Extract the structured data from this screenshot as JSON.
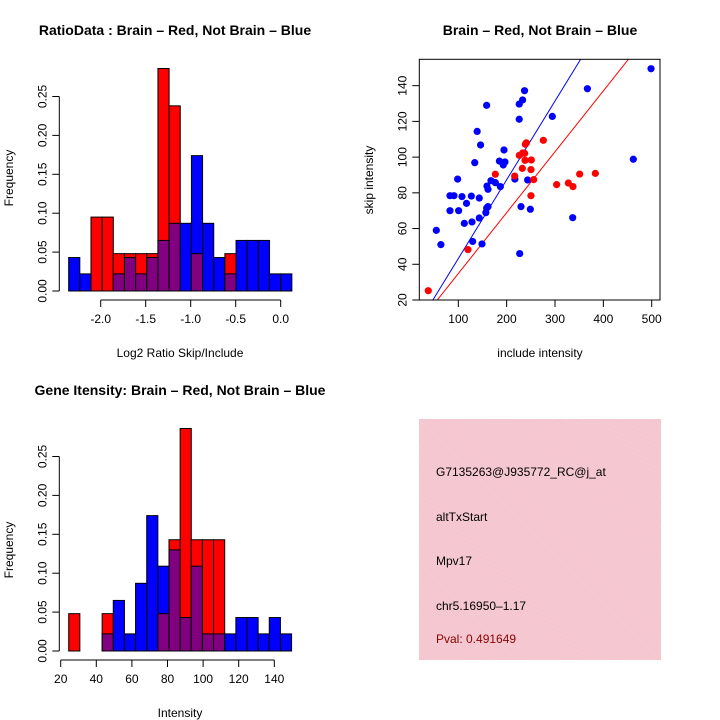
{
  "colors": {
    "red": "#ff0000",
    "blue": "#0000ff",
    "overlap": "#800080",
    "panel": "#f4c2cc",
    "pval": "#8b0000"
  },
  "chart_data": [
    {
      "type": "histogram",
      "title": "RatioData : Brain – Red, Not Brain – Blue",
      "xlabel": "Log2 Ratio Skip/Include",
      "ylabel": "Frequency",
      "xticks": [
        "-2.0",
        "-1.5",
        "-1.0",
        "-0.5",
        "0.0"
      ],
      "xtick_values": [
        -2.0,
        -1.5,
        -1.0,
        -0.5,
        0.0
      ],
      "yticks": [
        "0.00",
        "0.05",
        "0.10",
        "0.15",
        "0.20",
        "0.25"
      ],
      "ytick_values": [
        0,
        0.05,
        0.1,
        0.15,
        0.2,
        0.25
      ],
      "bin_start": -2.356,
      "bin_width": 0.124,
      "series": [
        {
          "name": "Brain",
          "color": "red",
          "values": [
            0,
            0,
            0.095,
            0.095,
            0.048,
            0.048,
            0.048,
            0.048,
            0.286,
            0.238,
            0,
            0.048,
            0,
            0,
            0.048,
            0,
            0,
            0,
            0,
            0
          ]
        },
        {
          "name": "Not Brain",
          "color": "blue",
          "values": [
            0.043,
            0.022,
            0,
            0,
            0.022,
            0.043,
            0.022,
            0.043,
            0.065,
            0.087,
            0.087,
            0.174,
            0.087,
            0.043,
            0.022,
            0.065,
            0.065,
            0.065,
            0.022,
            0.022
          ]
        }
      ]
    },
    {
      "type": "scatter",
      "title": "Brain – Red, Not Brain – Blue",
      "xlabel": "include intensity",
      "ylabel": "skip intensity",
      "xlim": [
        20,
        518
      ],
      "ylim": [
        20,
        155
      ],
      "xticks": [
        "100",
        "200",
        "300",
        "400",
        "500"
      ],
      "xtick_values": [
        100,
        200,
        300,
        400,
        500
      ],
      "yticks": [
        "20",
        "40",
        "60",
        "80",
        "100",
        "120",
        "140"
      ],
      "ytick_values": [
        20,
        40,
        60,
        80,
        100,
        120,
        140
      ],
      "series": [
        {
          "name": "Not Brain",
          "color": "blue",
          "fit": {
            "slope": 0.441,
            "intercept": -0.9
          },
          "points": [
            [
              498.6,
              149.5
            ],
            [
              367,
              138.3
            ],
            [
              237,
              137.2
            ],
            [
              233,
              132
            ],
            [
              226,
              129.7
            ],
            [
              158.6,
              129
            ],
            [
              226,
              121.2
            ],
            [
              294.5,
              122.8
            ],
            [
              139,
              114.4
            ],
            [
              146,
              106.8
            ],
            [
              194.5,
              104
            ],
            [
              134,
              96.9
            ],
            [
              185,
              97.8
            ],
            [
              193,
              95.6
            ],
            [
              196.5,
              97.3
            ],
            [
              98.6,
              87.7
            ],
            [
              167.6,
              86.8
            ],
            [
              176.6,
              85.7
            ],
            [
              217,
              87.7
            ],
            [
              243.4,
              87.2
            ],
            [
              159.3,
              83.8
            ],
            [
              161.4,
              82
            ],
            [
              187,
              83.5
            ],
            [
              82.8,
              78.4
            ],
            [
              91,
              78.4
            ],
            [
              107.6,
              77.9
            ],
            [
              127,
              78.2
            ],
            [
              143.4,
              77.1
            ],
            [
              117,
              74.1
            ],
            [
              82.8,
              70
            ],
            [
              100.7,
              70
            ],
            [
              158.6,
              71.5
            ],
            [
              161.4,
              72.3
            ],
            [
              229.7,
              72.3
            ],
            [
              249,
              70.8
            ],
            [
              157,
              68.9
            ],
            [
              143.4,
              65.9
            ],
            [
              112.4,
              62.9
            ],
            [
              128.3,
              63.7
            ],
            [
              336.6,
              66.1
            ],
            [
              54.5,
              59
            ],
            [
              64,
              51
            ],
            [
              129.7,
              52.8
            ],
            [
              149,
              51.4
            ],
            [
              227,
              46
            ],
            [
              462,
              98.8
            ]
          ]
        },
        {
          "name": "Brain",
          "color": "red",
          "fit": {
            "slope": 0.341,
            "intercept": 0.7
          },
          "points": [
            [
              37.9,
              25.2
            ],
            [
              120,
              48.2
            ],
            [
              176.6,
              90.4
            ],
            [
              216.6,
              89.4
            ],
            [
              238.6,
              107.2
            ],
            [
              240.7,
              108
            ],
            [
              275.9,
              109.4
            ],
            [
              226.2,
              101
            ],
            [
              233.1,
              102.3
            ],
            [
              237.2,
              102.1
            ],
            [
              238,
              98.2
            ],
            [
              251,
              98.4
            ],
            [
              232.4,
              93.7
            ],
            [
              250.3,
              93
            ],
            [
              255.9,
              87.4
            ],
            [
              250.3,
              78.4
            ],
            [
              303.4,
              84.6
            ],
            [
              327.6,
              85.5
            ],
            [
              337.2,
              83.5
            ],
            [
              351,
              90.5
            ],
            [
              383.4,
              90.9
            ]
          ]
        }
      ]
    },
    {
      "type": "histogram",
      "title": "Gene Itensity: Brain – Red, Not Brain – Blue",
      "xlabel": "Intensity",
      "ylabel": "Frequency",
      "xticks": [
        "20",
        "40",
        "60",
        "80",
        "100",
        "120",
        "140"
      ],
      "xtick_values": [
        20,
        40,
        60,
        80,
        100,
        120,
        140
      ],
      "yticks": [
        "0.00",
        "0.05",
        "0.10",
        "0.15",
        "0.20",
        "0.25"
      ],
      "ytick_values": [
        0,
        0.05,
        0.1,
        0.15,
        0.2,
        0.25
      ],
      "bin_start": 24.5,
      "bin_width": 6.26,
      "series": [
        {
          "name": "Brain",
          "color": "red",
          "values": [
            0.048,
            0,
            0,
            0.048,
            0,
            0,
            0,
            0,
            0.048,
            0.143,
            0.286,
            0.143,
            0.143,
            0.143,
            0,
            0,
            0,
            0,
            0,
            0
          ]
        },
        {
          "name": "Not Brain",
          "color": "blue",
          "values": [
            0,
            0,
            0,
            0.022,
            0.065,
            0.022,
            0.087,
            0.174,
            0.109,
            0.13,
            0.043,
            0.109,
            0.022,
            0.022,
            0.022,
            0.043,
            0.043,
            0.022,
            0.043,
            0.022
          ]
        }
      ]
    }
  ],
  "info_panel": {
    "probe_id": "G7135263@J935772_RC@j_at",
    "event_type": "altTxStart",
    "gene": "Mpv17",
    "location": "chr5.16950–1.17",
    "pval": "Pval: 0.491649"
  }
}
